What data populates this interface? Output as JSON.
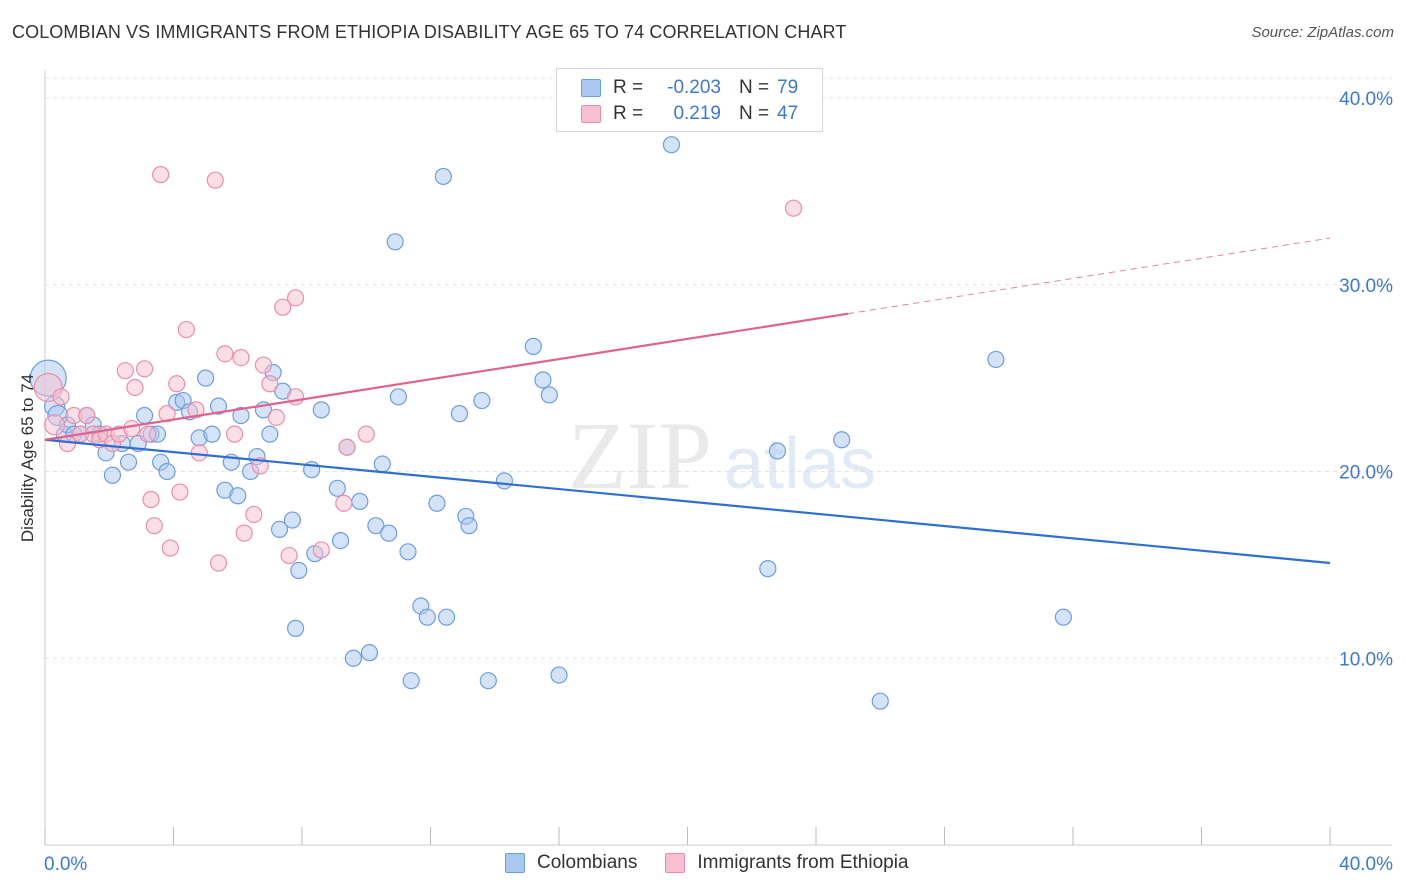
{
  "title": "COLOMBIAN VS IMMIGRANTS FROM ETHIOPIA DISABILITY AGE 65 TO 74 CORRELATION CHART",
  "source": "Source: ZipAtlas.com",
  "watermark": {
    "zip": "ZIP",
    "atlas": "atlas"
  },
  "legend_top": {
    "rows": [
      {
        "r_label": "R =",
        "r_value": "-0.203",
        "n_label": "N =",
        "n_value": "79"
      },
      {
        "r_label": "R =",
        "r_value": "0.219",
        "n_label": "N =",
        "n_value": "47"
      }
    ]
  },
  "colors": {
    "blue_fill": "#a9c8f0",
    "blue_stroke": "#6d9ee0",
    "blue_line": "#2f6fd0",
    "pink_fill": "#f7bfd0",
    "pink_stroke": "#ec8eaa",
    "pink_line": "#e0628e",
    "tick_label": "#3c78d8",
    "grid": "#e3e3e3"
  },
  "chart_data": {
    "type": "scatter",
    "title": "COLOMBIAN VS IMMIGRANTS FROM ETHIOPIA DISABILITY AGE 65 TO 74 CORRELATION CHART",
    "xlabel": "",
    "ylabel": "Disability Age 65 to 74",
    "xlim": [
      0,
      40
    ],
    "ylim": [
      0,
      41.5
    ],
    "x_tick_labels": [
      "0.0%",
      "40.0%"
    ],
    "y_ticks": [
      10,
      20,
      30,
      40
    ],
    "y_tick_labels": [
      "10.0%",
      "20.0%",
      "30.0%",
      "40.0%"
    ],
    "grid": true,
    "legend_position": "bottom",
    "series": [
      {
        "name": "Colombians",
        "r": -0.203,
        "n": 79,
        "trend": {
          "x": [
            0,
            40
          ],
          "y": [
            21.7,
            15.1
          ],
          "dashed_from": null
        },
        "points": [
          [
            0.1,
            25.0,
            18
          ],
          [
            0.3,
            23.5,
            10
          ],
          [
            0.4,
            23.0,
            10
          ],
          [
            0.6,
            22.0,
            8
          ],
          [
            0.7,
            22.5,
            8
          ],
          [
            0.9,
            22.0,
            8
          ],
          [
            1.1,
            22.0,
            8
          ],
          [
            1.3,
            23.0,
            8
          ],
          [
            1.5,
            22.5,
            8
          ],
          [
            1.7,
            22.0,
            8
          ],
          [
            1.9,
            21.0,
            8
          ],
          [
            2.1,
            19.8,
            8
          ],
          [
            2.4,
            21.5,
            8
          ],
          [
            2.6,
            20.5,
            8
          ],
          [
            2.9,
            21.5,
            8
          ],
          [
            3.1,
            23.0,
            8
          ],
          [
            3.3,
            22.0,
            8
          ],
          [
            3.5,
            22.0,
            8
          ],
          [
            3.6,
            20.5,
            8
          ],
          [
            3.8,
            20.0,
            8
          ],
          [
            4.1,
            23.7,
            8
          ],
          [
            4.3,
            23.8,
            8
          ],
          [
            4.5,
            23.2,
            8
          ],
          [
            4.8,
            21.8,
            8
          ],
          [
            5.0,
            25.0,
            8
          ],
          [
            5.2,
            22.0,
            8
          ],
          [
            5.4,
            23.5,
            8
          ],
          [
            5.6,
            19.0,
            8
          ],
          [
            5.8,
            20.5,
            8
          ],
          [
            6.0,
            18.7,
            8
          ],
          [
            6.1,
            23.0,
            8
          ],
          [
            6.4,
            20.0,
            8
          ],
          [
            6.6,
            20.8,
            8
          ],
          [
            6.8,
            23.3,
            8
          ],
          [
            7.0,
            22.0,
            8
          ],
          [
            7.1,
            25.3,
            8
          ],
          [
            7.3,
            16.9,
            8
          ],
          [
            7.4,
            24.3,
            8
          ],
          [
            7.7,
            17.4,
            8
          ],
          [
            7.9,
            14.7,
            8
          ],
          [
            7.8,
            11.6,
            8
          ],
          [
            8.3,
            20.1,
            8
          ],
          [
            8.4,
            15.6,
            8
          ],
          [
            8.6,
            23.3,
            8
          ],
          [
            9.1,
            19.1,
            8
          ],
          [
            9.2,
            16.3,
            8
          ],
          [
            9.4,
            21.3,
            8
          ],
          [
            9.6,
            10.0,
            8
          ],
          [
            9.8,
            18.4,
            8
          ],
          [
            10.1,
            10.3,
            8
          ],
          [
            10.3,
            17.1,
            8
          ],
          [
            10.5,
            20.4,
            8
          ],
          [
            10.7,
            16.7,
            8
          ],
          [
            10.9,
            32.3,
            8
          ],
          [
            11.0,
            24.0,
            8
          ],
          [
            11.3,
            15.7,
            8
          ],
          [
            11.4,
            8.8,
            8
          ],
          [
            11.7,
            12.8,
            8
          ],
          [
            11.9,
            12.2,
            8
          ],
          [
            12.2,
            18.3,
            8
          ],
          [
            12.4,
            35.8,
            8
          ],
          [
            12.5,
            12.2,
            8
          ],
          [
            12.9,
            23.1,
            8
          ],
          [
            13.1,
            17.6,
            8
          ],
          [
            13.2,
            17.1,
            8
          ],
          [
            13.6,
            23.8,
            8
          ],
          [
            13.8,
            8.8,
            8
          ],
          [
            14.3,
            19.5,
            8
          ],
          [
            15.2,
            26.7,
            8
          ],
          [
            15.5,
            24.9,
            8
          ],
          [
            15.7,
            24.1,
            8
          ],
          [
            16.0,
            9.1,
            8
          ],
          [
            19.5,
            37.5,
            8
          ],
          [
            22.5,
            14.8,
            8
          ],
          [
            22.8,
            21.1,
            8
          ],
          [
            24.8,
            21.7,
            8
          ],
          [
            26.0,
            7.7,
            8
          ],
          [
            29.6,
            26.0,
            8
          ],
          [
            31.7,
            12.2,
            8
          ]
        ]
      },
      {
        "name": "Immigrants from Ethiopia",
        "r": 0.219,
        "n": 47,
        "trend": {
          "x": [
            0,
            40
          ],
          "y": [
            21.7,
            32.5
          ],
          "dashed_from": 25.0
        },
        "points": [
          [
            0.1,
            24.5,
            14
          ],
          [
            0.3,
            22.5,
            10
          ],
          [
            0.5,
            24.0,
            8
          ],
          [
            0.7,
            21.5,
            8
          ],
          [
            0.9,
            23.0,
            8
          ],
          [
            1.1,
            22.0,
            8
          ],
          [
            1.3,
            23.0,
            8
          ],
          [
            1.5,
            22.0,
            8
          ],
          [
            1.7,
            21.7,
            8
          ],
          [
            1.9,
            22.0,
            8
          ],
          [
            2.1,
            21.5,
            8
          ],
          [
            2.3,
            22.0,
            8
          ],
          [
            2.5,
            25.4,
            8
          ],
          [
            2.7,
            22.3,
            8
          ],
          [
            2.8,
            24.5,
            8
          ],
          [
            3.1,
            25.5,
            8
          ],
          [
            3.2,
            22.0,
            8
          ],
          [
            3.3,
            18.5,
            8
          ],
          [
            3.4,
            17.1,
            8
          ],
          [
            3.6,
            35.9,
            8
          ],
          [
            3.8,
            23.1,
            8
          ],
          [
            3.9,
            15.9,
            8
          ],
          [
            4.1,
            24.7,
            8
          ],
          [
            4.2,
            18.9,
            8
          ],
          [
            4.4,
            27.6,
            8
          ],
          [
            4.7,
            23.3,
            8
          ],
          [
            4.8,
            21.0,
            8
          ],
          [
            5.3,
            35.6,
            8
          ],
          [
            5.4,
            15.1,
            8
          ],
          [
            5.6,
            26.3,
            8
          ],
          [
            5.9,
            22.0,
            8
          ],
          [
            6.1,
            26.1,
            8
          ],
          [
            6.2,
            16.7,
            8
          ],
          [
            6.5,
            17.7,
            8
          ],
          [
            6.7,
            20.3,
            8
          ],
          [
            6.8,
            25.7,
            8
          ],
          [
            7.0,
            24.7,
            8
          ],
          [
            7.2,
            22.9,
            8
          ],
          [
            7.4,
            28.8,
            8
          ],
          [
            7.6,
            15.5,
            8
          ],
          [
            7.8,
            29.3,
            8
          ],
          [
            7.8,
            24.0,
            8
          ],
          [
            8.6,
            15.8,
            8
          ],
          [
            9.3,
            18.3,
            8
          ],
          [
            9.4,
            21.3,
            8
          ],
          [
            10.0,
            22.0,
            8
          ],
          [
            23.3,
            34.1,
            8
          ]
        ]
      }
    ]
  },
  "bottom_legend": [
    {
      "name": "Colombians"
    },
    {
      "name": "Immigrants from Ethiopia"
    }
  ]
}
